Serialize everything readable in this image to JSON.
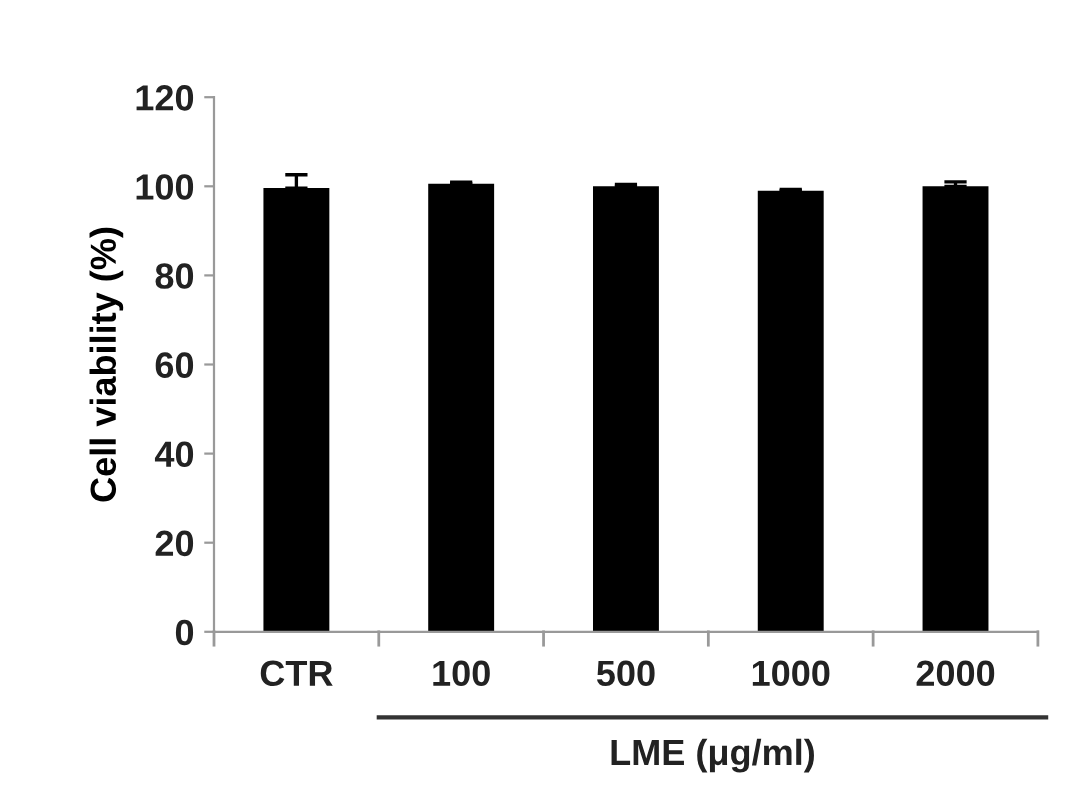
{
  "chart_data": {
    "type": "bar",
    "ylabel": "Cell viability (%)",
    "xlabel": "LME (μg/ml)",
    "categories": [
      "CTR",
      "100",
      "500",
      "1000",
      "2000"
    ],
    "series": [
      {
        "color": "#000000",
        "values": [
          99.6,
          100.6,
          100,
          99,
          100
        ],
        "errors": [
          3,
          0.3,
          0.4,
          0.3,
          1
        ]
      }
    ],
    "ylim": [
      0,
      120
    ],
    "yticks": [
      0,
      20,
      40,
      60,
      80,
      100,
      120
    ],
    "grid": false,
    "legend": false
  }
}
